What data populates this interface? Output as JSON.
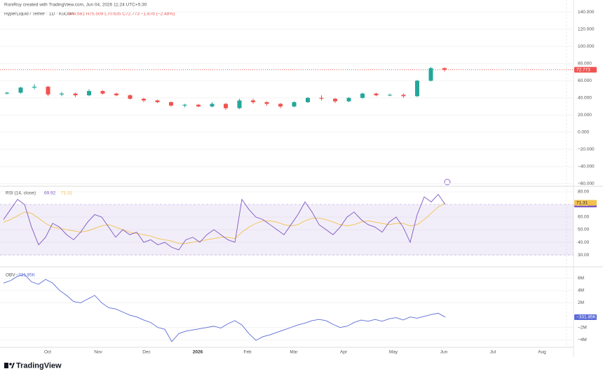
{
  "header": {
    "credit": "RoniRoy created with TradingView.com, Jun 04, 2026 11:24 UTC+5:30",
    "symbol": "HyperLiquid / Tether · 1D · KuCoin",
    "ohlc": "O74.681 H75.509 L70.635 C72.773 −1.876 (−2.48%)"
  },
  "chart_data": [
    {
      "type": "candlestick",
      "up_color": "#26a69a",
      "down_color": "#ef5350",
      "open": [
        45,
        46,
        52,
        53,
        44,
        45,
        43,
        48,
        45,
        43,
        39,
        37,
        35,
        31,
        32,
        30,
        33,
        28,
        37,
        35,
        33,
        30,
        35,
        40,
        39,
        36,
        40,
        45,
        43,
        43.5,
        42,
        60,
        74.681
      ],
      "high": [
        47,
        53,
        56,
        54,
        47,
        46,
        50,
        49,
        46,
        44,
        40,
        38,
        36,
        33,
        33,
        35,
        34,
        39,
        39,
        36,
        34,
        36,
        41,
        43,
        40,
        41,
        46,
        46,
        45,
        45,
        61,
        76,
        75.509
      ],
      "low": [
        44,
        45,
        50,
        42,
        42,
        41,
        42,
        44,
        42,
        38,
        35,
        34,
        30,
        29,
        29,
        29,
        26,
        27,
        33,
        31,
        28,
        29,
        34,
        37,
        34,
        35,
        39,
        42,
        42,
        40,
        41,
        59,
        70.635
      ],
      "close": [
        46,
        52,
        53,
        44,
        45,
        43,
        48,
        45,
        43,
        39,
        37,
        35,
        31,
        32,
        30,
        33,
        28,
        37,
        35,
        33,
        30,
        35,
        40,
        39,
        36,
        40,
        45,
        43,
        43.5,
        42,
        60,
        74.681,
        72.773
      ],
      "ylim": [
        -63,
        150
      ],
      "yticks": [
        {
          "value": -60,
          "label": "−60.000"
        },
        {
          "value": -40,
          "label": "−40.000"
        },
        {
          "value": -20,
          "label": "−20.000"
        },
        {
          "value": 0,
          "label": "0.000"
        },
        {
          "value": 20,
          "label": "20.000"
        },
        {
          "value": 40,
          "label": "40.000"
        },
        {
          "value": 60,
          "label": "60.000"
        },
        {
          "value": 80,
          "label": "80.000"
        },
        {
          "value": 100,
          "label": "100.000"
        },
        {
          "value": 120,
          "label": "120.000"
        },
        {
          "value": 140,
          "label": "140.000"
        }
      ]
    },
    {
      "type": "line",
      "title": "RSI (14, close)",
      "band": [
        30,
        70
      ],
      "band_color": "#7e57c2",
      "series": [
        {
          "color": "#7e57c2",
          "values": [
            58,
            66,
            74,
            70,
            52,
            38,
            44,
            55,
            52,
            46,
            42,
            48,
            56,
            62,
            60,
            52,
            44,
            50,
            46,
            48,
            40,
            42,
            38,
            40,
            36,
            34,
            42,
            44,
            40,
            46,
            50,
            46,
            42,
            40,
            74,
            66,
            60,
            58,
            54,
            50,
            46,
            54,
            62,
            72,
            64,
            54,
            50,
            46,
            52,
            60,
            64,
            58,
            54,
            52,
            48,
            56,
            60,
            52,
            40,
            62,
            76,
            72,
            78,
            69.92
          ]
        },
        {
          "color": "#f2c14e",
          "values": [
            56,
            58,
            61,
            64,
            63,
            59,
            55,
            52,
            51,
            50,
            49,
            48,
            49,
            51,
            53,
            54,
            52,
            50,
            48,
            47,
            46,
            45,
            43,
            42,
            41,
            39,
            39,
            40,
            41,
            42,
            43,
            44,
            44,
            43,
            48,
            52,
            55,
            57,
            57,
            56,
            54,
            53,
            54,
            57,
            59,
            59,
            58,
            56,
            54,
            53,
            54,
            56,
            57,
            56,
            55,
            54,
            55,
            55,
            53,
            54,
            58,
            63,
            68,
            71.31
          ]
        }
      ],
      "ylim": [
        25.6,
        83.3
      ],
      "yticks": [
        {
          "value": 30,
          "label": "30.00"
        },
        {
          "value": 40,
          "label": "40.00"
        },
        {
          "value": 50,
          "label": "50.00"
        },
        {
          "value": 60,
          "label": "60.00"
        },
        {
          "value": 80,
          "label": "80.00"
        }
      ]
    },
    {
      "type": "line",
      "title": "OBV",
      "series": [
        {
          "color": "#5b6bd6",
          "values": [
            5200000.0,
            5600000.0,
            6300000.0,
            6600000.0,
            5400000.0,
            5000000.0,
            5800000.0,
            5200000.0,
            4000000.0,
            3200000.0,
            2200000.0,
            2000000.0,
            2600000.0,
            3200000.0,
            2000000.0,
            1200000.0,
            1000000.0,
            500000.0,
            0,
            -300000.0,
            -800000.0,
            -1200000.0,
            -2000000.0,
            -2300000.0,
            -4300000.0,
            -3000000.0,
            -2600000.0,
            -2400000.0,
            -2200000.0,
            -2000000.0,
            -1800000.0,
            -2100000.0,
            -1400000.0,
            -900000.0,
            -1600000.0,
            -3000000.0,
            -4100000.0,
            -3500000.0,
            -3200000.0,
            -2800000.0,
            -2400000.0,
            -2000000.0,
            -1600000.0,
            -1300000.0,
            -900000.0,
            -700000.0,
            -900000.0,
            -1500000.0,
            -2000000.0,
            -1800000.0,
            -1200000.0,
            -800000.0,
            -1000000.0,
            -700000.0,
            -1000000.0,
            -600000.0,
            -400000.0,
            -800000.0,
            -300000.0,
            -500000.0,
            -200000.0,
            100000.0,
            300000.0,
            -331850
          ]
        }
      ],
      "legend_value": {
        "value": -331850,
        "label": "−331.85K"
      },
      "ylim": [
        -5110000,
        7390000
      ],
      "yticks": [
        {
          "value": -4000000,
          "label": "−4M"
        },
        {
          "value": -2000000,
          "label": "−2M"
        },
        {
          "value": 2000000,
          "label": "2M"
        },
        {
          "value": 4000000,
          "label": "4M"
        },
        {
          "value": 6000000,
          "label": "6M"
        }
      ]
    }
  ],
  "time_axis": [
    "Oct",
    "Nov",
    "Dec",
    "2026",
    "Feb",
    "Mar",
    "Apr",
    "May",
    "Jun",
    "Jul",
    "Aug"
  ],
  "footer": "TradingView"
}
